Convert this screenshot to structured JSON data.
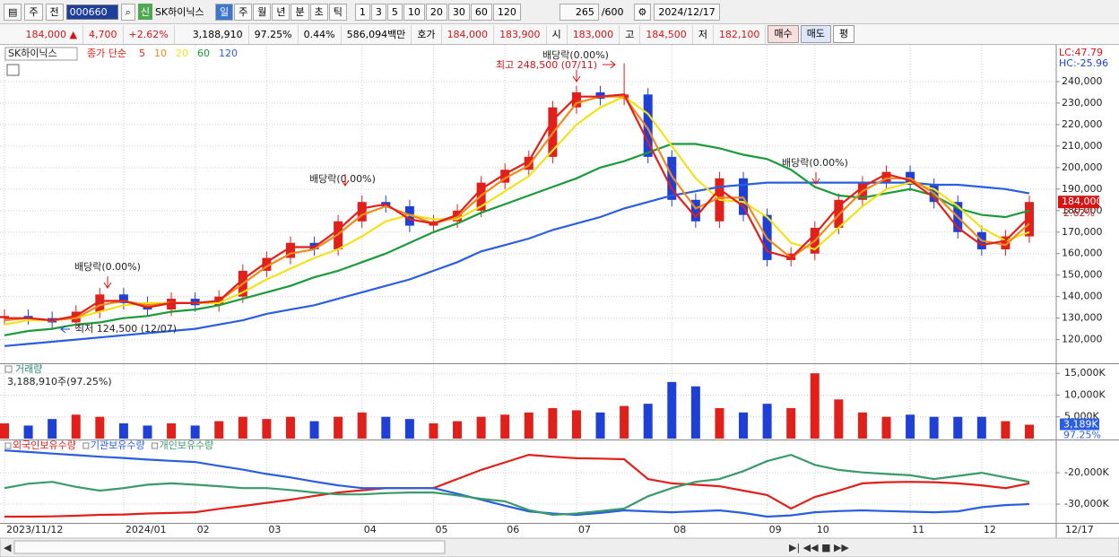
{
  "toolbar": {
    "market": "주",
    "prev": "전",
    "code": "000660",
    "tag": "신",
    "name": "SK하이닉스",
    "periods": [
      "일",
      "주",
      "월",
      "년",
      "분",
      "초",
      "틱"
    ],
    "intervals": [
      "1",
      "3",
      "5",
      "10",
      "20",
      "30",
      "60",
      "120"
    ],
    "count": "265",
    "max": "/600",
    "date": "2024/12/17"
  },
  "quote": {
    "price": "184,000 ▲",
    "change": "4,700",
    "rate": "+2.62%",
    "volume": "3,188,910",
    "vol_ratio": "97.25%",
    "turnover": "0.44%",
    "amount": "586,094백만",
    "ask_label": "호가",
    "ask": "184,000",
    "bid": "183,900",
    "open_label": "시",
    "open": "183,000",
    "high_label": "고",
    "high": "184,500",
    "low_label": "저",
    "low": "182,100",
    "buy": "매수",
    "sell": "매도",
    "avg": "평"
  },
  "chart_data": [
    {
      "type": "candlestick",
      "title": "SK하이닉스",
      "legend_label": "종가 단순",
      "up_color": "#e0201b",
      "down_color": "#1e40d6",
      "open": [
        130000,
        131000,
        130000,
        128000,
        133000,
        141000,
        137000,
        134000,
        139000,
        136000,
        140000,
        152000,
        158000,
        165000,
        162000,
        175000,
        184000,
        182000,
        173000,
        175000,
        180000,
        193000,
        199000,
        205000,
        228000,
        235000,
        232000,
        234000,
        205000,
        185000,
        175000,
        195000,
        178000,
        157000,
        160000,
        172000,
        185000,
        193000,
        198000,
        192000,
        184000,
        170000,
        162000,
        168000
      ],
      "high": [
        134000,
        134000,
        133000,
        136000,
        144000,
        144000,
        140000,
        142000,
        142000,
        143000,
        155000,
        161000,
        168000,
        168000,
        178000,
        187000,
        187000,
        185000,
        178000,
        183000,
        196000,
        202000,
        208000,
        231000,
        238000,
        238000,
        248500,
        237000,
        208000,
        188000,
        198000,
        198000,
        181000,
        163000,
        175000,
        188000,
        196000,
        201000,
        201000,
        195000,
        187000,
        173000,
        171000,
        187000
      ],
      "low": [
        127000,
        127000,
        124500,
        125000,
        130000,
        134000,
        131000,
        131000,
        133000,
        133000,
        137000,
        149000,
        155000,
        159000,
        159000,
        172000,
        179000,
        170000,
        170000,
        172000,
        177000,
        190000,
        196000,
        202000,
        225000,
        229000,
        229000,
        202000,
        182000,
        172000,
        172000,
        175000,
        154000,
        154000,
        157000,
        169000,
        182000,
        190000,
        189000,
        181000,
        167000,
        159000,
        159000,
        165000
      ],
      "close": [
        131000,
        130000,
        128000,
        133000,
        141000,
        137000,
        134000,
        139000,
        136000,
        140000,
        152000,
        158000,
        165000,
        162000,
        175000,
        184000,
        182000,
        173000,
        175000,
        180000,
        193000,
        199000,
        205000,
        228000,
        235000,
        232000,
        234000,
        205000,
        185000,
        175000,
        195000,
        178000,
        157000,
        160000,
        172000,
        185000,
        193000,
        198000,
        192000,
        184000,
        170000,
        162000,
        168000,
        184000
      ],
      "series": [
        {
          "name": "5",
          "color": "#e0201b",
          "values": [
            130000,
            130000,
            129000,
            131000,
            138000,
            138000,
            135000,
            137000,
            137000,
            138000,
            148000,
            156000,
            163000,
            163000,
            171000,
            181000,
            183000,
            176000,
            174000,
            178000,
            190000,
            197000,
            203000,
            222000,
            233000,
            233000,
            234000,
            212000,
            190000,
            177000,
            190000,
            182000,
            161000,
            158000,
            169000,
            182000,
            191000,
            197000,
            194000,
            186000,
            172000,
            164000,
            166000,
            177000
          ]
        },
        {
          "name": "10",
          "color": "#f08a1c",
          "values": [
            129000,
            130000,
            129000,
            130000,
            136000,
            138000,
            136000,
            137000,
            137000,
            138000,
            146000,
            154000,
            160000,
            162000,
            169000,
            178000,
            182000,
            178000,
            174000,
            177000,
            187000,
            195000,
            201000,
            216000,
            230000,
            233000,
            233000,
            218000,
            196000,
            181000,
            186000,
            186000,
            167000,
            158000,
            166000,
            178000,
            189000,
            195000,
            195000,
            188000,
            177000,
            166000,
            164000,
            174000
          ]
        },
        {
          "name": "20",
          "color": "#f2e21a",
          "values": [
            127000,
            129000,
            129000,
            130000,
            133000,
            136000,
            137000,
            137000,
            137000,
            137000,
            142000,
            148000,
            153000,
            158000,
            162000,
            168000,
            175000,
            178000,
            176000,
            176000,
            182000,
            189000,
            196000,
            208000,
            220000,
            228000,
            233000,
            225000,
            210000,
            195000,
            185000,
            184000,
            177000,
            165000,
            162000,
            172000,
            182000,
            190000,
            193000,
            190000,
            182000,
            172000,
            166000,
            170000
          ]
        },
        {
          "name": "60",
          "color": "#1c9a3a",
          "values": [
            122000,
            124000,
            125000,
            127000,
            128000,
            130000,
            131000,
            133000,
            134000,
            136000,
            139000,
            142000,
            145000,
            149000,
            152000,
            156000,
            160000,
            165000,
            170000,
            174000,
            179000,
            183000,
            187000,
            191000,
            195000,
            200000,
            203000,
            207000,
            211000,
            211000,
            209000,
            206000,
            204000,
            199000,
            191000,
            187000,
            186000,
            188000,
            190000,
            187000,
            181000,
            178000,
            177000,
            180000
          ]
        },
        {
          "name": "120",
          "color": "#2a5ee0",
          "values": [
            117000,
            118000,
            119000,
            120000,
            121000,
            122000,
            123000,
            124000,
            125000,
            127000,
            129000,
            132000,
            134000,
            136000,
            139000,
            142000,
            145000,
            148000,
            152000,
            156000,
            161000,
            164000,
            167000,
            171000,
            174000,
            177000,
            181000,
            184000,
            187000,
            189000,
            191000,
            192000,
            193000,
            193000,
            193000,
            193000,
            193000,
            193000,
            193000,
            192000,
            192000,
            191000,
            190000,
            188000
          ]
        }
      ],
      "ylim": [
        109000,
        255000
      ],
      "yticks": [
        {
          "value": 120000,
          "label": "120,000"
        },
        {
          "value": 130000,
          "label": "130,000"
        },
        {
          "value": 140000,
          "label": "140,000"
        },
        {
          "value": 150000,
          "label": "150,000"
        },
        {
          "value": 160000,
          "label": "160,000"
        },
        {
          "value": 170000,
          "label": "170,000"
        },
        {
          "value": 180000,
          "label": "180,000"
        },
        {
          "value": 190000,
          "label": "190,000"
        },
        {
          "value": 200000,
          "label": "200,000"
        },
        {
          "value": 210000,
          "label": "210,000"
        },
        {
          "value": 220000,
          "label": "220,000"
        },
        {
          "value": 230000,
          "label": "230,000"
        },
        {
          "value": 240000,
          "label": "240,000"
        }
      ],
      "grid": true,
      "annotations": [
        "최고 248,500 (07/11)",
        "최저 124,500 (12/07)",
        "배당락(0.00%)",
        "배당락(0.00%)",
        "배당락(0.00%)",
        "배당락(0.00%)"
      ],
      "right_labels": {
        "lc": "LC:47.79",
        "hc": "HC:-25.96",
        "last": "184,000",
        "rate": "2.62%"
      }
    },
    {
      "type": "bar",
      "title": "거래량",
      "subtitle": "3,188,910주(97.25%)",
      "values": [
        3500000,
        3000000,
        4500000,
        5500000,
        5000000,
        3500000,
        3000000,
        3500000,
        3000000,
        4000000,
        5000000,
        4500000,
        5000000,
        4000000,
        5000000,
        6000000,
        5000000,
        4500000,
        3500000,
        4000000,
        5000000,
        5500000,
        6000000,
        7000000,
        6500000,
        6000000,
        7500000,
        8000000,
        13000000,
        12000000,
        7000000,
        6000000,
        8000000,
        7000000,
        15000000,
        9000000,
        6000000,
        5000000,
        5500000,
        5000000,
        5000000,
        5000000,
        4000000,
        3188910
      ],
      "ylim": [
        0,
        17100000
      ],
      "yticks": [
        {
          "value": 5000000,
          "label": "5,000K"
        },
        {
          "value": 10000000,
          "label": "10,000K"
        },
        {
          "value": 15000000,
          "label": "15,000K"
        }
      ],
      "grid": true,
      "last_label": "3,189K",
      "last_pct": "97.25%"
    },
    {
      "type": "line",
      "series": [
        {
          "name": "외국인보유수량",
          "color": "#e0201b",
          "values": [
            -34000000,
            -34000000,
            -33900000,
            -33700000,
            -33400000,
            -33300000,
            -33000000,
            -32800000,
            -32600000,
            -31500000,
            -30600000,
            -29600000,
            -28600000,
            -27400000,
            -26300000,
            -25600000,
            -24900000,
            -24900000,
            -24900000,
            -22000000,
            -19100000,
            -16700000,
            -14300000,
            -14900000,
            -15400000,
            -15500000,
            -15700000,
            -22000000,
            -23400000,
            -23800000,
            -24300000,
            -25700000,
            -27100000,
            -31400000,
            -27700000,
            -25700000,
            -23400000,
            -23000000,
            -22900000,
            -23000000,
            -23400000,
            -24000000,
            -24900000,
            -23400000
          ]
        },
        {
          "name": "기관보유수량",
          "color": "#2a5ee0",
          "values": [
            -12900000,
            -13400000,
            -13900000,
            -14400000,
            -14900000,
            -15300000,
            -15800000,
            -16200000,
            -16600000,
            -17800000,
            -19000000,
            -20400000,
            -21500000,
            -22800000,
            -24000000,
            -24900000,
            -24900000,
            -24900000,
            -24900000,
            -26700000,
            -28600000,
            -30500000,
            -32300000,
            -33000000,
            -33400000,
            -32800000,
            -32000000,
            -32300000,
            -32600000,
            -32300000,
            -32000000,
            -32800000,
            -34000000,
            -33600000,
            -32600000,
            -32200000,
            -32000000,
            -32200000,
            -32400000,
            -32600000,
            -32300000,
            -31000000,
            -30300000,
            -30000000
          ]
        },
        {
          "name": "개인보유수량",
          "color": "#3a9a6a",
          "values": [
            -24900000,
            -23500000,
            -22900000,
            -24500000,
            -25700000,
            -24900000,
            -23800000,
            -23400000,
            -23800000,
            -24300000,
            -24900000,
            -24900000,
            -25500000,
            -26300000,
            -26900000,
            -26900000,
            -26500000,
            -26300000,
            -26300000,
            -27200000,
            -28300000,
            -29100000,
            -31900000,
            -33400000,
            -33000000,
            -32200000,
            -31400000,
            -27500000,
            -24900000,
            -22900000,
            -22000000,
            -19500000,
            -16300000,
            -14300000,
            -17500000,
            -19100000,
            -19900000,
            -20400000,
            -20800000,
            -22000000,
            -21000000,
            -20000000,
            -21500000,
            -22900000
          ]
        }
      ],
      "ylim": [
        -35700000,
        -9700000
      ],
      "yticks": [
        {
          "value": -30000000,
          "label": "-30,000K"
        },
        {
          "value": -20000000,
          "label": "-20,000K"
        }
      ],
      "grid": true,
      "categories": [
        "2023/11/12",
        null,
        null,
        null,
        null,
        "2024/01",
        null,
        null,
        "02",
        null,
        null,
        "03",
        null,
        null,
        null,
        "04",
        null,
        null,
        "05",
        null,
        null,
        "06",
        null,
        null,
        "07",
        null,
        null,
        null,
        "08",
        null,
        null,
        null,
        "09",
        null,
        "10",
        null,
        null,
        null,
        "11",
        null,
        null,
        "12",
        null,
        null
      ],
      "end_label": "12/17"
    }
  ]
}
